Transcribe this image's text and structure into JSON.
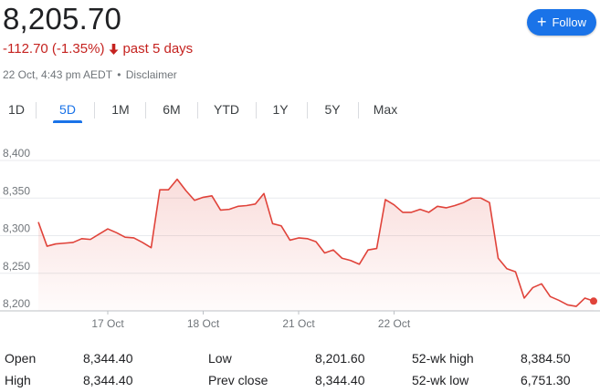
{
  "quote": {
    "price": "8,205.70",
    "change": "-112.70 (-1.35%)",
    "period": "past 5 days",
    "timestamp": "22 Oct, 4:43 pm AEDT",
    "separator": "•",
    "disclaimer": "Disclaimer"
  },
  "follow": {
    "label": "Follow",
    "icon": "plus-icon"
  },
  "tabs": [
    {
      "label": "1D",
      "active": false
    },
    {
      "label": "5D",
      "active": true
    },
    {
      "label": "1M",
      "active": false
    },
    {
      "label": "6M",
      "active": false
    },
    {
      "label": "YTD",
      "active": false
    },
    {
      "label": "1Y",
      "active": false
    },
    {
      "label": "5Y",
      "active": false
    },
    {
      "label": "Max",
      "active": false
    }
  ],
  "chart_data": {
    "type": "area",
    "yticks": [
      "8,400",
      "8,350",
      "8,300",
      "8,250",
      "8,200"
    ],
    "ylim": [
      8200,
      8400
    ],
    "xlabels": [
      "17 Oct",
      "18 Oct",
      "21 Oct",
      "22 Oct"
    ],
    "xlabel_index": [
      8,
      19,
      30,
      41
    ],
    "grid": true,
    "line_color": "#e0433a",
    "series": [
      {
        "values": [
          8318,
          8286,
          8289,
          8290,
          8291,
          8296,
          8295,
          8302,
          8309,
          8304,
          8298,
          8297,
          8291,
          8284,
          8361,
          8361,
          8375,
          8360,
          8347,
          8351,
          8353,
          8334,
          8335,
          8339,
          8340,
          8342,
          8356,
          8316,
          8313,
          8294,
          8297,
          8296,
          8292,
          8277,
          8281,
          8270,
          8267,
          8262,
          8281,
          8283,
          8348,
          8341,
          8331,
          8331,
          8335,
          8331,
          8339,
          8337,
          8340,
          8344,
          8350,
          8350,
          8344,
          8270,
          8256,
          8252,
          8217,
          8231,
          8236,
          8219,
          8214,
          8208,
          8206,
          8217,
          8213
        ]
      }
    ]
  },
  "stats": {
    "rows": [
      [
        {
          "label": "Open",
          "value": "8,344.40"
        },
        {
          "label": "Low",
          "value": "8,201.60"
        },
        {
          "label": "52-wk high",
          "value": "8,384.50"
        }
      ],
      [
        {
          "label": "High",
          "value": "8,344.40"
        },
        {
          "label": "Prev close",
          "value": "8,344.40"
        },
        {
          "label": "52-wk low",
          "value": "6,751.30"
        }
      ]
    ]
  }
}
